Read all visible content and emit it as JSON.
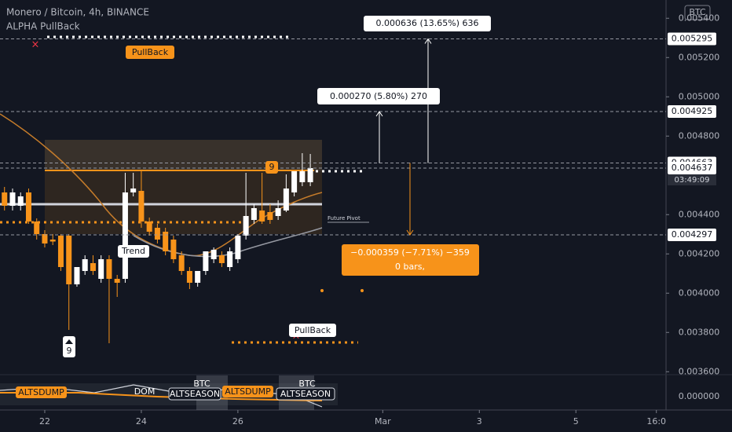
{
  "header": {
    "symbol": "Monero / Bitcoin, 4h, BINANCE",
    "indicator": "ALPHA PullBack",
    "currency": "BTC"
  },
  "chart_data": {
    "type": "candlestick",
    "x": [
      -5,
      -4,
      -3,
      -2,
      -1,
      0,
      1,
      2,
      3,
      4,
      5,
      6,
      7,
      8,
      9,
      10,
      11,
      12,
      13,
      14,
      15,
      16,
      17,
      18,
      19,
      20,
      21,
      22,
      23,
      24,
      25,
      26,
      27,
      28,
      29,
      30,
      31,
      32,
      33
    ],
    "open": [
      0.004513,
      0.004445,
      0.004445,
      0.004513,
      0.004365,
      0.004301,
      0.004273,
      0.004293,
      0.004293,
      0.004045,
      0.004113,
      0.004153,
      0.004073,
      0.004173,
      0.004073,
      0.004073,
      0.004513,
      0.004521,
      0.004365,
      0.004333,
      0.004313,
      0.004273,
      0.004193,
      0.004113,
      0.004053,
      0.004113,
      0.004173,
      0.004193,
      0.004133,
      0.004173,
      0.004293,
      0.004373,
      0.004421,
      0.004413,
      0.004393,
      0.004421,
      0.004513,
      0.004565,
      0.004565
    ],
    "high": [
      0.004541,
      0.004533,
      0.004513,
      0.004533,
      0.004381,
      0.004321,
      0.004301,
      0.004301,
      0.004301,
      0.004133,
      0.004193,
      0.004193,
      0.004193,
      0.004193,
      0.004093,
      0.004613,
      0.004613,
      0.004621,
      0.004385,
      0.004353,
      0.004333,
      0.004293,
      0.004213,
      0.004133,
      0.004113,
      0.004213,
      0.004233,
      0.004213,
      0.004233,
      0.004301,
      0.004613,
      0.004453,
      0.004613,
      0.004453,
      0.004473,
      0.004605,
      0.004621,
      0.004713,
      0.004709
    ],
    "low": [
      0.004421,
      0.004421,
      0.004421,
      0.004353,
      0.004273,
      0.004233,
      0.004245,
      0.004113,
      0.003813,
      0.004033,
      0.004093,
      0.004093,
      0.004053,
      0.003745,
      0.003981,
      0.004053,
      0.004493,
      0.004333,
      0.004293,
      0.004253,
      0.004193,
      0.004153,
      0.004093,
      0.004021,
      0.004033,
      0.004093,
      0.004153,
      0.004133,
      0.004113,
      0.004153,
      0.004273,
      0.004353,
      0.004353,
      0.004353,
      0.004373,
      0.004413,
      0.004493,
      0.004545,
      0.004545
    ],
    "close": [
      0.004445,
      0.004513,
      0.004493,
      0.004365,
      0.004301,
      0.004253,
      0.004263,
      0.004133,
      0.004045,
      0.004133,
      0.004173,
      0.004113,
      0.004173,
      0.004073,
      0.004053,
      0.004513,
      0.004533,
      0.004365,
      0.004313,
      0.004273,
      0.004213,
      0.004173,
      0.004113,
      0.004053,
      0.004113,
      0.004213,
      0.004221,
      0.004153,
      0.004213,
      0.004293,
      0.004393,
      0.004433,
      0.004365,
      0.004373,
      0.004433,
      0.004533,
      0.004621,
      0.004621,
      0.004637
    ],
    "bull_color": "#ffffff",
    "bear_color": "#f7931a",
    "xlim": [
      -5.56,
      77.2
    ],
    "xticks": [
      {
        "value": 0,
        "label": "22"
      },
      {
        "value": 12,
        "label": "24"
      },
      {
        "value": 24,
        "label": "26"
      },
      {
        "value": 42,
        "label": "Mar"
      },
      {
        "value": 54,
        "label": "3"
      },
      {
        "value": 66,
        "label": "5"
      },
      {
        "value": 76,
        "label": "16:0"
      }
    ],
    "ylim": [
      0.003585,
      0.005493
    ],
    "yticks": [
      {
        "value": 0.0054,
        "label": "0.005400"
      },
      {
        "value": 0.0052,
        "label": "0.005200"
      },
      {
        "value": 0.005,
        "label": "0.005000"
      },
      {
        "value": 0.0048,
        "label": "0.004800"
      },
      {
        "value": 0.0044,
        "label": "0.004400"
      },
      {
        "value": 0.0042,
        "label": "0.004200"
      },
      {
        "value": 0.004,
        "label": "0.004000"
      },
      {
        "value": 0.0038,
        "label": "0.003800"
      },
      {
        "value": 0.0036,
        "label": "0.003600"
      }
    ],
    "price_lines": [
      {
        "value": 0.005295,
        "label": "0.005295"
      },
      {
        "value": 0.004925,
        "label": "0.004925"
      },
      {
        "value": 0.004663,
        "label": "0.004663"
      },
      {
        "value": 0.004637,
        "label": "0.004637"
      },
      {
        "value": 0.004297,
        "label": "0.004297"
      }
    ],
    "countdown": "03:49:09",
    "annotations": [
      "0.000636 (13.65%) 636",
      "0.000270 (5.80%) 270",
      "−0.000359 (−7.71%) −359",
      "0 bars,",
      "PullBack",
      "PullBack",
      "Trend",
      "9",
      "9",
      "Future Pivot"
    ]
  },
  "indicator_pane": {
    "labels": [
      "ALTSDUMP",
      "DOM",
      "BTC",
      "ALTSEASON",
      "ALTSDUMP",
      "BTC",
      "ALTSEASON"
    ],
    "axis_label": "0.000000"
  }
}
